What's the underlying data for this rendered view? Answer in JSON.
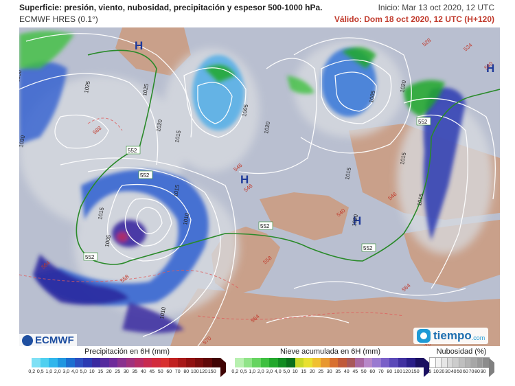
{
  "header": {
    "title": "Superficie: presión, viento, nubosidad, precipitación y espesor 500-1000 hPa.",
    "model": "ECMWF HRES (0.1°)",
    "init": "Inicio: Mar 13 oct 2020, 12 UTC",
    "valid": "Válido: Dom 18 oct 2020, 12 UTC (H+120)"
  },
  "map": {
    "high_label": "H",
    "isobar_labels": [
      "1030",
      "1025",
      "1020",
      "1015",
      "1010",
      "1005",
      "1025",
      "1030",
      "1015",
      "1020",
      "1015",
      "1005",
      "1015",
      "1020",
      "1020",
      "1015",
      "1005",
      "1015",
      "1010"
    ],
    "thickness_labels": [
      "552",
      "552",
      "552",
      "552",
      "552",
      "552"
    ],
    "red_thickness_labels": [
      "564",
      "558",
      "564",
      "570",
      "558",
      "564",
      "570",
      "588",
      "546",
      "546",
      "540",
      "528",
      "534",
      "540",
      "546"
    ]
  },
  "logos": {
    "ecmwf": "ECMWF",
    "tiempo": "tiempo",
    "tiempo_suffix": ".com"
  },
  "legend": {
    "precip": {
      "title": "Precipitación en 6H (mm)",
      "ticks": [
        "0,2",
        "0,5",
        "1,0",
        "2,0",
        "3,0",
        "4,0",
        "5,0",
        "10",
        "15",
        "20",
        "25",
        "30",
        "35",
        "40",
        "45",
        "50",
        "60",
        "70",
        "80",
        "100",
        "120",
        "150"
      ],
      "colors": [
        "#7fe0f5",
        "#4fd0f0",
        "#2fb6ec",
        "#1f96e0",
        "#1c6fd0",
        "#2c4fc0",
        "#2b3ab2",
        "#3a2aa0",
        "#552a9e",
        "#6e2a9a",
        "#89308e",
        "#a0307c",
        "#b62c66",
        "#c82a50",
        "#d22a3c",
        "#d83030",
        "#c02020",
        "#a81818",
        "#901010",
        "#780c0c",
        "#600808",
        "#400404"
      ]
    },
    "snow": {
      "title": "Nieve acumulada en 6H (mm)",
      "ticks": [
        "0,2",
        "0,5",
        "1,0",
        "2,0",
        "3,0",
        "4,0",
        "5,0",
        "10",
        "15",
        "20",
        "25",
        "30",
        "35",
        "40",
        "45",
        "50",
        "60",
        "70",
        "80",
        "100",
        "120",
        "150"
      ],
      "colors": [
        "#b8f0b0",
        "#90e488",
        "#66d460",
        "#3ec040",
        "#22a82c",
        "#128c22",
        "#0a701c",
        "#c8d828",
        "#e8e030",
        "#f0c030",
        "#e89830",
        "#d87030",
        "#c05a3a",
        "#a8585a",
        "#a868a0",
        "#b888c8",
        "#9a7ad0",
        "#7a60c8",
        "#5a48b8",
        "#4030a0",
        "#2a1e88",
        "#1a1060"
      ]
    },
    "cloud": {
      "title": "Nubosidad (%)",
      "ticks": [
        "5",
        "10",
        "20",
        "30",
        "40",
        "50",
        "60",
        "70",
        "80",
        "90"
      ],
      "colors": [
        "#ffffff",
        "#f2f2f2",
        "#e6e6e6",
        "#d9d9d9",
        "#cccccc",
        "#bfbfbf",
        "#b3b3b3",
        "#a6a6a6",
        "#999999",
        "#8c8c8c"
      ]
    }
  }
}
